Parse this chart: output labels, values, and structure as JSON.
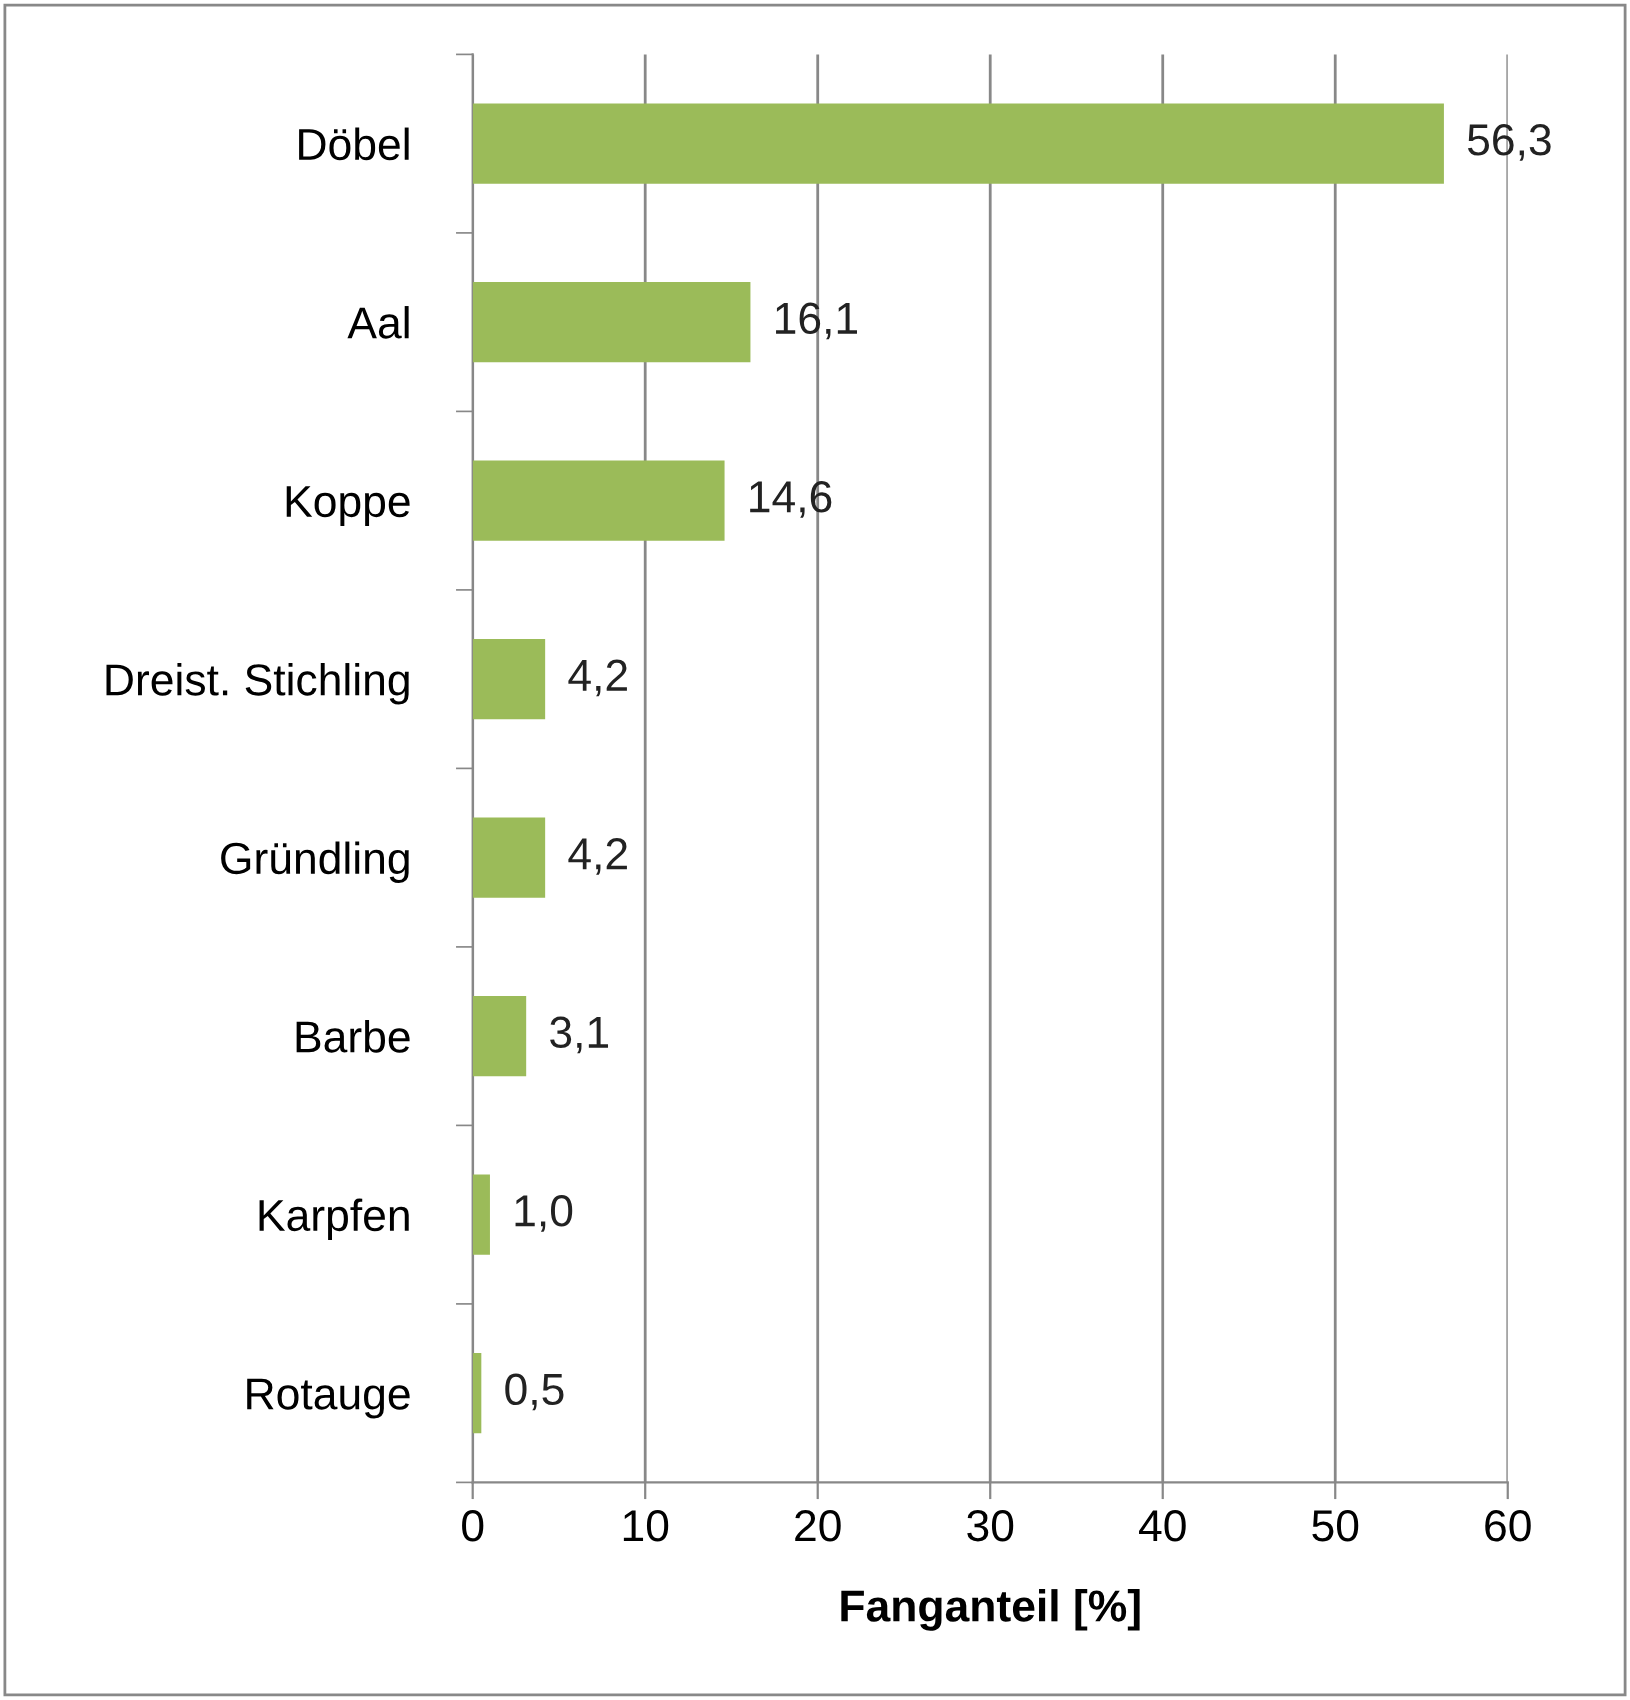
{
  "chart_data": {
    "type": "bar",
    "orientation": "horizontal",
    "xlabel": "Fanganteil [%]",
    "categories": [
      "Döbel",
      "Aal",
      "Koppe",
      "Dreist. Stichling",
      "Gründling",
      "Barbe",
      "Karpfen",
      "Rotauge"
    ],
    "values": [
      56.3,
      16.1,
      14.6,
      4.2,
      4.2,
      3.1,
      1.0,
      0.5
    ],
    "value_labels": [
      "56,3",
      "16,1",
      "14,6",
      "4,2",
      "4,2",
      "3,1",
      "1,0",
      "0,5"
    ],
    "color": "#9bbb59",
    "xlim": [
      0,
      60
    ],
    "xticks": [
      0,
      10,
      20,
      30,
      40,
      50,
      60
    ],
    "grid": "x",
    "legend": false
  }
}
